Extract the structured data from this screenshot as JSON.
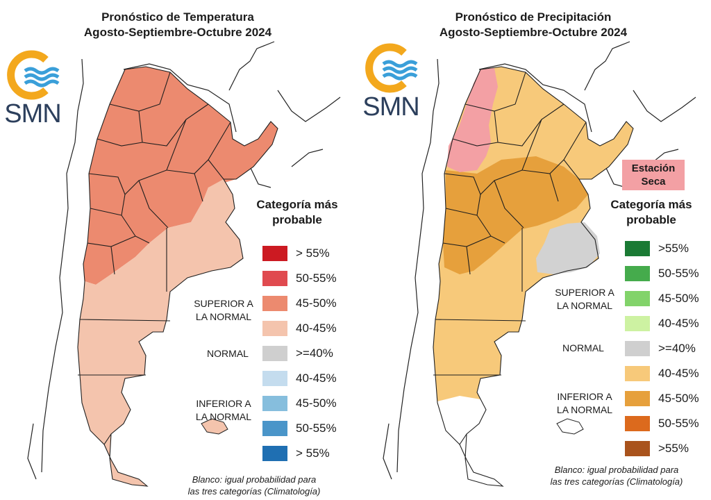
{
  "logo_text": "SMN",
  "temperature": {
    "title_line1": "Pronóstico de Temperatura",
    "title_line2": "Agosto-Septiembre-Octubre 2024",
    "legend_title_line1": "Categoría más",
    "legend_title_line2": "probable",
    "group_above_line1": "SUPERIOR A",
    "group_above_line2": "LA NORMAL",
    "group_normal": "NORMAL",
    "group_below_line1": "INFERIOR A",
    "group_below_line2": "LA NORMAL",
    "legend": [
      {
        "label": "> 55%",
        "color": "#cc1a22"
      },
      {
        "label": "50-55%",
        "color": "#e04a4f"
      },
      {
        "label": "45-50%",
        "color": "#ec8a6f"
      },
      {
        "label": "40-45%",
        "color": "#f4c4ad"
      },
      {
        "label": ">=40%",
        "color": "#cfcfcf"
      },
      {
        "label": "40-45%",
        "color": "#c4dcee"
      },
      {
        "label": "45-50%",
        "color": "#86bedd"
      },
      {
        "label": "50-55%",
        "color": "#4a95c9"
      },
      {
        "label": "> 55%",
        "color": "#1f6fb2"
      }
    ],
    "footnote_line1": "Blanco: igual probabilidad para",
    "footnote_line2": "las tres categorías (Climatología)"
  },
  "precipitation": {
    "title_line1": "Pronóstico de Precipitación",
    "title_line2": "Agosto-Septiembre-Octubre 2024",
    "season_badge_line1": "Estación",
    "season_badge_line2": "Seca",
    "legend_title_line1": "Categoría más",
    "legend_title_line2": "probable",
    "group_above_line1": "SUPERIOR A",
    "group_above_line2": "LA NORMAL",
    "group_normal": "NORMAL",
    "group_below_line1": "INFERIOR A",
    "group_below_line2": "LA NORMAL",
    "legend": [
      {
        "label": ">55%",
        "color": "#1a7a34"
      },
      {
        "label": "50-55%",
        "color": "#45ab4c"
      },
      {
        "label": "45-50%",
        "color": "#82d36a"
      },
      {
        "label": "40-45%",
        "color": "#cdf2a2"
      },
      {
        "label": ">=40%",
        "color": "#cfcfcf"
      },
      {
        "label": "40-45%",
        "color": "#f7c97a"
      },
      {
        "label": "45-50%",
        "color": "#e6a03c"
      },
      {
        "label": "50-55%",
        "color": "#dc6a1d"
      },
      {
        "label": ">55%",
        "color": "#a9531c"
      }
    ],
    "footnote_line1": "Blanco: igual probabilidad para",
    "footnote_line2": "las tres categorías (Climatología)"
  }
}
